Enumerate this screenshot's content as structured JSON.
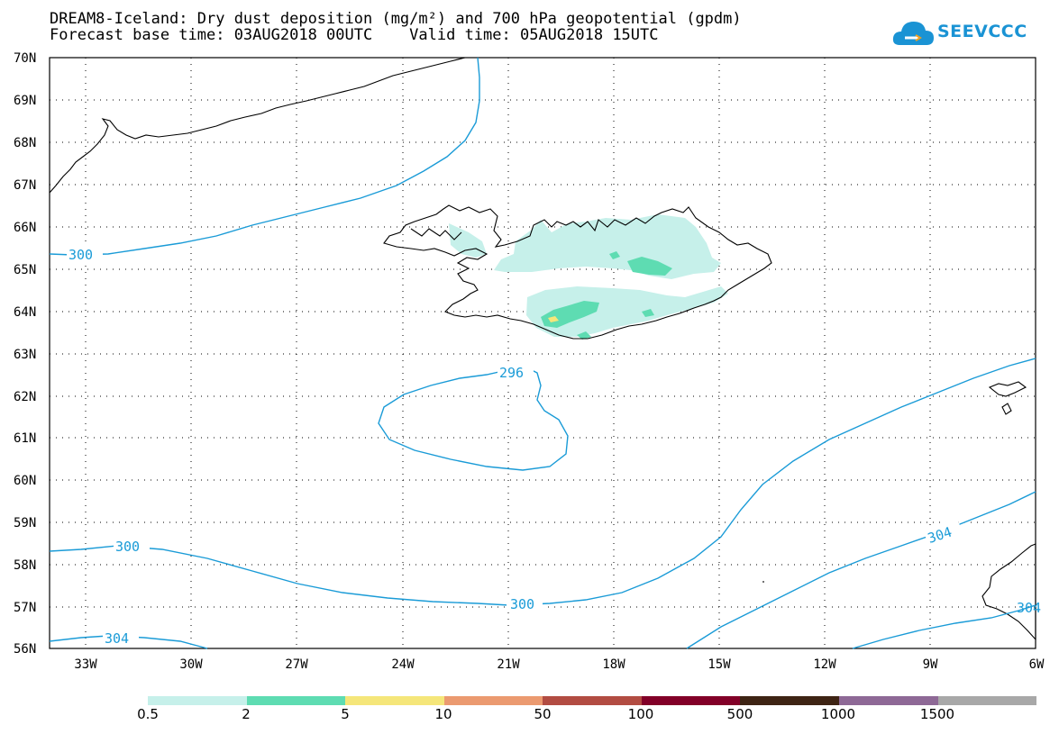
{
  "title": {
    "line1": "DREAM8-Iceland: Dry dust deposition (mg/m²) and 700 hPa geopotential (gpdm)",
    "line2": "Forecast base time: 03AUG2018 00UTC    Valid time: 05AUG2018 15UTC"
  },
  "logo": {
    "text": "SEEVCCC",
    "icon": "cloud-icon",
    "color": "#1a93d4"
  },
  "map": {
    "lat_labels": [
      "70N",
      "69N",
      "68N",
      "67N",
      "66N",
      "65N",
      "64N",
      "63N",
      "62N",
      "61N",
      "60N",
      "59N",
      "58N",
      "57N",
      "56N"
    ],
    "lon_labels": [
      "33W",
      "30W",
      "27W",
      "24W",
      "21W",
      "18W",
      "15W",
      "12W",
      "9W",
      "6W"
    ],
    "contour_color": "#1a9bd7",
    "contour_labels": [
      "300",
      "296",
      "300",
      "304",
      "304",
      "304"
    ]
  },
  "legend": {
    "colors": [
      "#c6f0ea",
      "#5edcb2",
      "#f5e67a",
      "#eb9a70",
      "#b24c42",
      "#820028",
      "#3e2414",
      "#8e6996",
      "#a8a8a8"
    ],
    "labels": [
      "0.5",
      "2",
      "5",
      "10",
      "50",
      "100",
      "500",
      "1000",
      "1500"
    ]
  }
}
